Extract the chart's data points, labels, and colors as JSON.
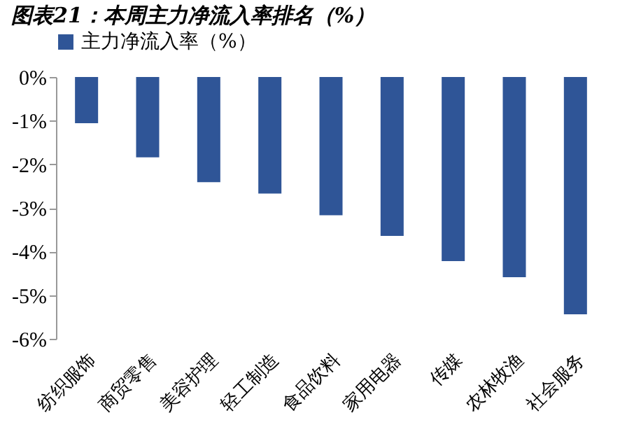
{
  "chart_data": {
    "type": "bar",
    "title": "图表21：本周主力净流入率排名（%）",
    "categories": [
      "纺织服饰",
      "商贸零售",
      "美容护理",
      "轻工制造",
      "食品饮料",
      "家用电器",
      "传媒",
      "农林牧渔",
      "社会服务"
    ],
    "series": [
      {
        "name": "主力净流入率（%）",
        "color": "#2f5597",
        "values": [
          -1.06,
          -1.84,
          -2.41,
          -2.67,
          -3.17,
          -3.64,
          -4.22,
          -4.59,
          -5.44
        ]
      }
    ],
    "ylim": [
      -6,
      0
    ],
    "yticks": [
      {
        "value": 0,
        "label": "0%"
      },
      {
        "value": -1,
        "label": "-1%"
      },
      {
        "value": -2,
        "label": "-2%"
      },
      {
        "value": -3,
        "label": "-3%"
      },
      {
        "value": -4,
        "label": "-4%"
      },
      {
        "value": -5,
        "label": "-5%"
      },
      {
        "value": -6,
        "label": "-6%"
      }
    ],
    "grid": false,
    "legend": "top"
  }
}
